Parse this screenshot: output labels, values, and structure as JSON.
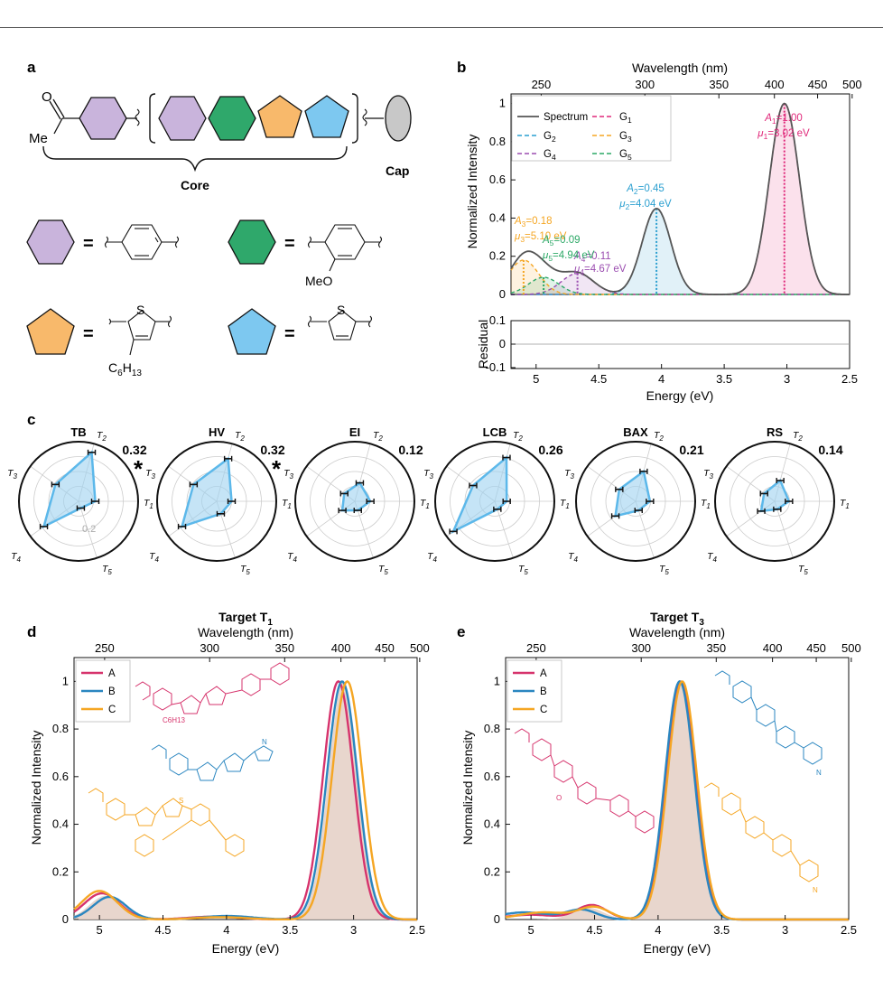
{
  "panel_labels": [
    "a",
    "b",
    "c",
    "d",
    "e"
  ],
  "panel_a": {
    "ketone_o": "O",
    "ketone_me": "Me",
    "core_label": "Core",
    "cap_label": "Cap",
    "equals": "=",
    "meo": "MeO",
    "sulfur": "S",
    "hexyl": "C6H13",
    "colors": {
      "purple": "#c9b4dc",
      "green": "#2fa86b",
      "orange": "#f8b96b",
      "blue": "#7dc8f0",
      "cap": "#c8c8c8"
    }
  },
  "panel_b": {
    "chart_data": {
      "type": "line",
      "top_axis_label": "Wavelength (nm)",
      "top_ticks": [
        "250",
        "300",
        "350",
        "400",
        "450",
        "500"
      ],
      "ylabel": "Normalized Intensity",
      "xlabel": "Energy (eV)",
      "x_ticks": [
        "5",
        "4.5",
        "4",
        "3.5",
        "3",
        "2.5"
      ],
      "y_ticks": [
        "0",
        "0.2",
        "0.4",
        "0.6",
        "0.8",
        "1"
      ],
      "xlim": [
        5.2,
        2.5
      ],
      "ylim": [
        0,
        1.05
      ],
      "legend": [
        "Spectrum",
        "G1",
        "G2",
        "G3",
        "G4",
        "G5"
      ],
      "gaussians": [
        {
          "name": "G1",
          "A": 1.0,
          "mu": 3.02,
          "sigma": 0.12,
          "color": "#e0287a",
          "label_a": "A1=1.00",
          "label_mu": "μ1=3.02 eV"
        },
        {
          "name": "G2",
          "A": 0.45,
          "mu": 4.04,
          "sigma": 0.115,
          "color": "#2a9fd0",
          "label_a": "A2=0.45",
          "label_mu": "μ2=4.04 eV"
        },
        {
          "name": "G3",
          "A": 0.18,
          "mu": 5.1,
          "sigma": 0.12,
          "color": "#f5a623",
          "label_a": "A3=0.18",
          "label_mu": "μ3=5.10 eV"
        },
        {
          "name": "G4",
          "A": 0.11,
          "mu": 4.67,
          "sigma": 0.13,
          "color": "#9b4db0",
          "label_a": "A4=0.11",
          "label_mu": "μ4=4.67 eV"
        },
        {
          "name": "G5",
          "A": 0.09,
          "mu": 4.94,
          "sigma": 0.12,
          "color": "#2ca866",
          "label_a": "A5=0.09",
          "label_mu": "μ5=4.94 eV"
        }
      ],
      "residual": {
        "ylabel": "Residual",
        "y_ticks": [
          "0.1",
          "0",
          "-0.1"
        ],
        "ylim": [
          -0.1,
          0.1
        ]
      }
    }
  },
  "panel_c": {
    "axes": [
      "T2",
      "T1",
      "T5",
      "T4",
      "T3"
    ],
    "ring_label": "0.2",
    "radars": [
      {
        "title": "TB",
        "score": "0.32",
        "star": true,
        "values": [
          0.85,
          0.28,
          0.12,
          0.72,
          0.48
        ]
      },
      {
        "title": "HV",
        "score": "0.32",
        "star": true,
        "values": [
          0.74,
          0.25,
          0.22,
          0.72,
          0.48
        ]
      },
      {
        "title": "EI",
        "score": "0.12",
        "star": false,
        "values": [
          0.32,
          0.26,
          0.16,
          0.26,
          0.22
        ]
      },
      {
        "title": "LCB",
        "score": "0.26",
        "star": false,
        "values": [
          0.76,
          0.2,
          0.14,
          0.86,
          0.45
        ]
      },
      {
        "title": "BAX",
        "score": "0.21",
        "star": false,
        "values": [
          0.52,
          0.24,
          0.16,
          0.42,
          0.34
        ]
      },
      {
        "title": "RS",
        "score": "0.14",
        "star": false,
        "values": [
          0.36,
          0.24,
          0.14,
          0.28,
          0.22
        ]
      }
    ]
  },
  "panel_d": {
    "title_main": "Target T",
    "title_sub": "1",
    "chart_data": {
      "type": "line",
      "top_axis_label": "Wavelength (nm)",
      "top_ticks": [
        "250",
        "300",
        "350",
        "400",
        "450",
        "500"
      ],
      "ylabel": "Normalized Intensity",
      "xlabel": "Energy (eV)",
      "x_ticks": [
        "5",
        "4.5",
        "4",
        "3.5",
        "3",
        "2.5"
      ],
      "y_ticks": [
        "0",
        "0.2",
        "0.4",
        "0.6",
        "0.8",
        "1"
      ],
      "xlim": [
        5.2,
        2.5
      ],
      "ylim": [
        0,
        1.1
      ],
      "legend": [
        "A",
        "B",
        "C"
      ],
      "target": {
        "peaks": [
          {
            "mu": 3.08,
            "A": 1.0,
            "sigma": 0.12
          },
          {
            "mu": 4.95,
            "A": 0.1,
            "sigma": 0.13
          }
        ],
        "color": "#e6d2c8"
      },
      "series": [
        {
          "name": "A",
          "color": "#d6336c",
          "peaks": [
            {
              "mu": 3.12,
              "A": 1.0,
              "sigma": 0.12
            },
            {
              "mu": 4.98,
              "A": 0.11,
              "sigma": 0.14
            },
            {
              "mu": 4.1,
              "A": 0.012,
              "sigma": 0.2
            }
          ]
        },
        {
          "name": "B",
          "color": "#2a86c0",
          "peaks": [
            {
              "mu": 3.09,
              "A": 1.0,
              "sigma": 0.12
            },
            {
              "mu": 4.92,
              "A": 0.095,
              "sigma": 0.13
            },
            {
              "mu": 4.0,
              "A": 0.015,
              "sigma": 0.2
            }
          ]
        },
        {
          "name": "C",
          "color": "#f5a623",
          "peaks": [
            {
              "mu": 3.05,
              "A": 1.0,
              "sigma": 0.12
            },
            {
              "mu": 5.0,
              "A": 0.12,
              "sigma": 0.14
            },
            {
              "mu": 4.05,
              "A": 0.01,
              "sigma": 0.2
            }
          ]
        }
      ],
      "mol_hexyl": "C6H13",
      "mol_s": "S",
      "mol_n": "N"
    }
  },
  "panel_e": {
    "title_main": "Target T",
    "title_sub": "3",
    "chart_data": {
      "type": "line",
      "top_axis_label": "Wavelength (nm)",
      "top_ticks": [
        "250",
        "300",
        "350",
        "400",
        "450",
        "500"
      ],
      "ylabel": "Normalized Intensity",
      "xlabel": "Energy (eV)",
      "x_ticks": [
        "5",
        "4.5",
        "4",
        "3.5",
        "3",
        "2.5"
      ],
      "y_ticks": [
        "0",
        "0.2",
        "0.4",
        "0.6",
        "0.8",
        "1"
      ],
      "xlim": [
        5.2,
        2.5
      ],
      "ylim": [
        0,
        1.1
      ],
      "legend": [
        "A",
        "B",
        "C"
      ],
      "target": {
        "peaks": [
          {
            "mu": 3.82,
            "A": 1.0,
            "sigma": 0.115
          },
          {
            "mu": 4.55,
            "A": 0.05,
            "sigma": 0.12
          }
        ],
        "color": "#e6d2c8"
      },
      "series": [
        {
          "name": "A",
          "color": "#d6336c",
          "peaks": [
            {
              "mu": 3.82,
              "A": 1.0,
              "sigma": 0.115
            },
            {
              "mu": 4.52,
              "A": 0.06,
              "sigma": 0.12
            },
            {
              "mu": 5.0,
              "A": 0.02,
              "sigma": 0.2
            }
          ]
        },
        {
          "name": "B",
          "color": "#2a86c0",
          "peaks": [
            {
              "mu": 3.83,
              "A": 1.0,
              "sigma": 0.115
            },
            {
              "mu": 4.6,
              "A": 0.04,
              "sigma": 0.12
            },
            {
              "mu": 5.05,
              "A": 0.03,
              "sigma": 0.2
            }
          ]
        },
        {
          "name": "C",
          "color": "#f5a623",
          "peaks": [
            {
              "mu": 3.81,
              "A": 1.0,
              "sigma": 0.115
            },
            {
              "mu": 4.5,
              "A": 0.05,
              "sigma": 0.12
            },
            {
              "mu": 4.9,
              "A": 0.03,
              "sigma": 0.2
            }
          ]
        }
      ],
      "mol_meo": "O",
      "mol_n": "N"
    }
  }
}
